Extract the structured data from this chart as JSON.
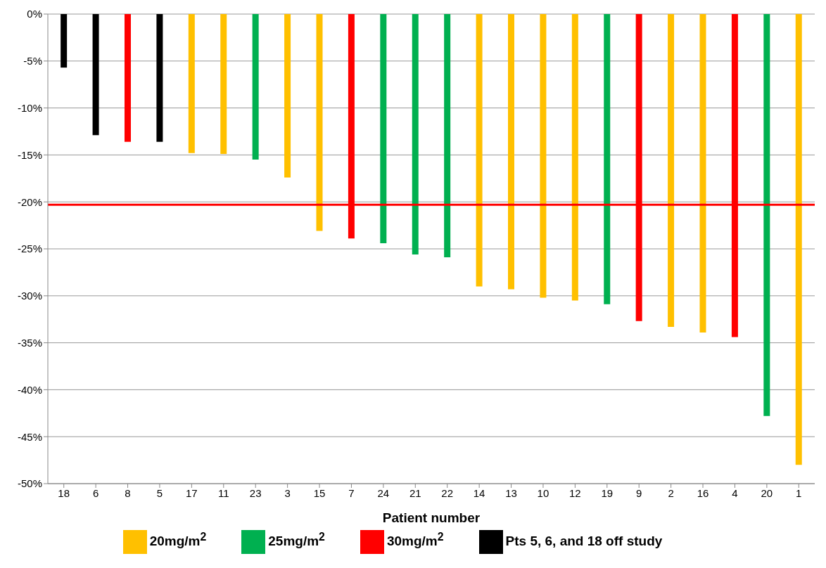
{
  "chart_data": {
    "type": "bar",
    "xlabel": "Patient number",
    "categories": [
      "18",
      "6",
      "8",
      "5",
      "17",
      "11",
      "23",
      "3",
      "15",
      "7",
      "24",
      "21",
      "22",
      "14",
      "13",
      "10",
      "12",
      "19",
      "9",
      "2",
      "16",
      "4",
      "20",
      "1"
    ],
    "stacked": true,
    "series": [
      {
        "name": "20mg/m$^{2}$",
        "color": "#ffc000",
        "values": [
          null,
          null,
          null,
          null,
          -14.8,
          -14.9,
          null,
          -17.4,
          -23.1,
          null,
          null,
          null,
          null,
          -29.0,
          -29.3,
          -30.2,
          -30.5,
          null,
          null,
          -33.3,
          -33.9,
          null,
          null,
          -48.0
        ]
      },
      {
        "name": "30mg/m$^{2}$",
        "color": "#ff0000",
        "values": [
          null,
          null,
          -13.6,
          null,
          null,
          null,
          null,
          null,
          null,
          -23.9,
          null,
          null,
          null,
          null,
          null,
          null,
          null,
          null,
          -32.7,
          null,
          null,
          -34.4,
          null,
          null
        ]
      },
      {
        "name": "25mg/m$^{2}$",
        "color": "#00b050",
        "values": [
          null,
          null,
          null,
          null,
          null,
          null,
          -15.5,
          null,
          null,
          null,
          -24.4,
          -25.6,
          -25.9,
          null,
          null,
          null,
          null,
          -30.9,
          null,
          null,
          null,
          null,
          -42.8,
          null
        ]
      },
      {
        "name": "Pts 5, 6, and 18 off study",
        "color": "#000000",
        "values": [
          -5.7,
          -12.9,
          null,
          -13.6,
          null,
          null,
          null,
          null,
          null,
          null,
          null,
          null,
          null,
          null,
          null,
          null,
          null,
          null,
          null,
          null,
          null,
          null,
          null,
          null
        ]
      }
    ],
    "ylim": [
      -50,
      0
    ],
    "yticks": [
      {
        "value": 0,
        "label": "0%"
      },
      {
        "value": -5,
        "label": "-5%"
      },
      {
        "value": -10,
        "label": "-10%"
      },
      {
        "value": -15,
        "label": "-15%"
      },
      {
        "value": -20,
        "label": "-20%"
      },
      {
        "value": -25,
        "label": "-25%"
      },
      {
        "value": -30,
        "label": "-30%"
      },
      {
        "value": -35,
        "label": "-35%"
      },
      {
        "value": -40,
        "label": "-40%"
      },
      {
        "value": -45,
        "label": "-45%"
      },
      {
        "value": -50,
        "label": "-50%"
      }
    ],
    "grid": "y",
    "legend": "bottom",
    "ref_lines": [
      {
        "axis": "y",
        "value": -20.3,
        "color": "#ff0000"
      }
    ]
  }
}
